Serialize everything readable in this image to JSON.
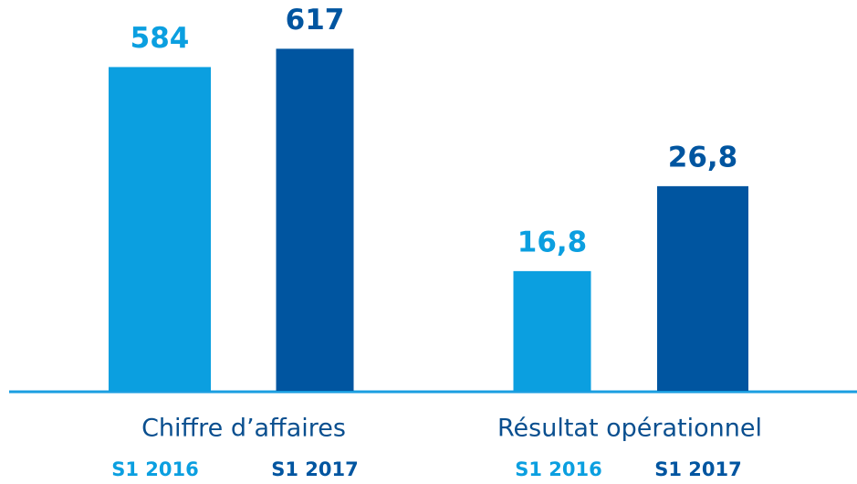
{
  "chart_data": [
    {
      "type": "bar",
      "title": "Chiffre d’affaires",
      "categories": [
        "S1 2016",
        "S1 2017"
      ],
      "values": [
        584,
        617
      ],
      "colors": [
        "#0b9fe0",
        "#0055a0"
      ],
      "ylim": [
        0,
        700
      ]
    },
    {
      "type": "bar",
      "title": "Résultat opérationnel",
      "categories": [
        "S1 2016",
        "S1 2017"
      ],
      "values": [
        16.8,
        26.8
      ],
      "value_labels": [
        "16,8",
        "26,8"
      ],
      "colors": [
        "#0b9fe0",
        "#0055a0"
      ],
      "ylim": [
        2.7,
        48.4
      ]
    }
  ]
}
